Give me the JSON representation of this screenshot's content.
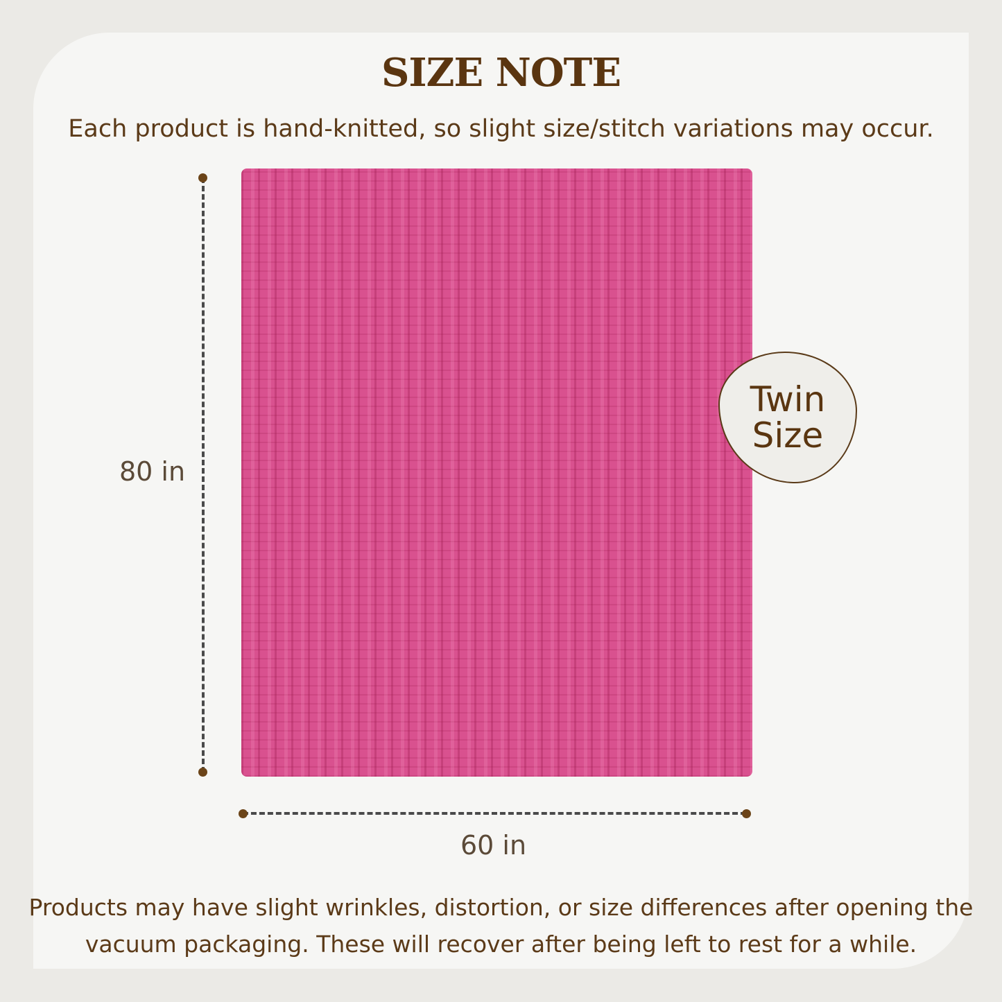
{
  "title": "SIZE NOTE",
  "subtitle": "Each product is hand-knitted, so slight size/stitch variations may occur.",
  "dimensions": {
    "height": "80 in",
    "width": "60 in"
  },
  "badge": {
    "line1": "Twin",
    "line2": "Size"
  },
  "note": {
    "line1": "Products may have slight wrinkles, distortion, or size differences after opening the",
    "line2": "vacuum packaging. These will recover after being left to rest for a while."
  },
  "colors": {
    "blanket": "#d9518f",
    "text": "#5b3a18",
    "background": "#ebeae6"
  }
}
